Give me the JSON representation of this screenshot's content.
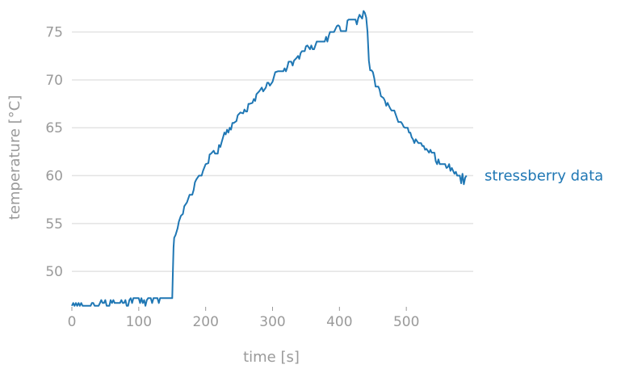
{
  "chart_data": {
    "type": "line",
    "xlabel": "time [s]",
    "ylabel": "temperature [°C]",
    "xlim": [
      0,
      600
    ],
    "ylim": [
      46.3,
      77.5
    ],
    "grid": "horizontal",
    "x_ticks": [
      0,
      100,
      200,
      300,
      400,
      500
    ],
    "y_ticks": [
      50,
      55,
      60,
      65,
      70,
      75
    ],
    "series": [
      {
        "name": "stressberry data",
        "color": "#1f77b4",
        "points": [
          [
            0,
            46.4
          ],
          [
            2,
            46.7
          ],
          [
            4,
            46.4
          ],
          [
            6,
            46.7
          ],
          [
            8,
            46.4
          ],
          [
            10,
            46.7
          ],
          [
            12,
            46.4
          ],
          [
            14,
            46.7
          ],
          [
            16,
            46.4
          ],
          [
            18,
            46.4
          ],
          [
            28,
            46.4
          ],
          [
            30,
            46.7
          ],
          [
            32,
            46.7
          ],
          [
            34,
            46.4
          ],
          [
            40,
            46.4
          ],
          [
            42,
            46.7
          ],
          [
            44,
            47.0
          ],
          [
            46,
            46.7
          ],
          [
            48,
            46.7
          ],
          [
            50,
            47.0
          ],
          [
            52,
            46.4
          ],
          [
            56,
            46.4
          ],
          [
            58,
            47.0
          ],
          [
            60,
            46.7
          ],
          [
            62,
            47.0
          ],
          [
            64,
            46.7
          ],
          [
            70,
            46.7
          ],
          [
            72,
            46.7
          ],
          [
            74,
            47.0
          ],
          [
            76,
            46.7
          ],
          [
            78,
            46.7
          ],
          [
            80,
            47.0
          ],
          [
            82,
            46.4
          ],
          [
            84,
            46.4
          ],
          [
            86,
            47.0
          ],
          [
            88,
            47.2
          ],
          [
            90,
            46.7
          ],
          [
            92,
            47.2
          ],
          [
            100,
            47.2
          ],
          [
            102,
            46.7
          ],
          [
            104,
            47.2
          ],
          [
            106,
            46.7
          ],
          [
            108,
            47.0
          ],
          [
            110,
            46.4
          ],
          [
            112,
            47.0
          ],
          [
            114,
            47.2
          ],
          [
            118,
            47.2
          ],
          [
            120,
            46.7
          ],
          [
            122,
            47.2
          ],
          [
            124,
            47.2
          ],
          [
            128,
            47.2
          ],
          [
            130,
            46.7
          ],
          [
            132,
            47.2
          ],
          [
            145,
            47.2
          ],
          [
            150,
            47.2
          ],
          [
            151,
            50.0
          ],
          [
            152,
            52.5
          ],
          [
            153,
            53.5
          ],
          [
            155,
            53.8
          ],
          [
            158,
            54.5
          ],
          [
            160,
            55.2
          ],
          [
            163,
            55.8
          ],
          [
            166,
            56.0
          ],
          [
            168,
            56.8
          ],
          [
            172,
            57.2
          ],
          [
            176,
            58.0
          ],
          [
            180,
            58.0
          ],
          [
            182,
            58.5
          ],
          [
            184,
            59.3
          ],
          [
            186,
            59.6
          ],
          [
            188,
            59.8
          ],
          [
            190,
            60.0
          ],
          [
            194,
            60.0
          ],
          [
            196,
            60.5
          ],
          [
            200,
            61.2
          ],
          [
            204,
            61.3
          ],
          [
            206,
            62.2
          ],
          [
            208,
            62.3
          ],
          [
            212,
            62.6
          ],
          [
            214,
            62.3
          ],
          [
            218,
            62.3
          ],
          [
            220,
            63.2
          ],
          [
            222,
            63.0
          ],
          [
            224,
            63.5
          ],
          [
            226,
            64.0
          ],
          [
            228,
            64.5
          ],
          [
            230,
            64.3
          ],
          [
            232,
            64.8
          ],
          [
            234,
            64.5
          ],
          [
            236,
            65.0
          ],
          [
            238,
            64.8
          ],
          [
            240,
            65.5
          ],
          [
            242,
            65.5
          ],
          [
            246,
            65.7
          ],
          [
            248,
            66.3
          ],
          [
            252,
            66.6
          ],
          [
            256,
            66.5
          ],
          [
            258,
            66.9
          ],
          [
            260,
            66.7
          ],
          [
            262,
            66.7
          ],
          [
            264,
            67.5
          ],
          [
            266,
            67.5
          ],
          [
            270,
            67.6
          ],
          [
            272,
            68.0
          ],
          [
            274,
            67.8
          ],
          [
            276,
            68.5
          ],
          [
            280,
            68.8
          ],
          [
            282,
            69.0
          ],
          [
            284,
            69.2
          ],
          [
            286,
            68.8
          ],
          [
            290,
            69.2
          ],
          [
            292,
            69.7
          ],
          [
            294,
            69.7
          ],
          [
            296,
            69.4
          ],
          [
            300,
            69.8
          ],
          [
            304,
            70.8
          ],
          [
            308,
            70.9
          ],
          [
            316,
            70.9
          ],
          [
            318,
            71.2
          ],
          [
            320,
            70.9
          ],
          [
            322,
            71.3
          ],
          [
            324,
            71.9
          ],
          [
            328,
            71.9
          ],
          [
            330,
            71.5
          ],
          [
            332,
            72.0
          ],
          [
            336,
            72.3
          ],
          [
            338,
            72.5
          ],
          [
            340,
            72.2
          ],
          [
            342,
            72.8
          ],
          [
            344,
            73.0
          ],
          [
            348,
            73.0
          ],
          [
            350,
            73.5
          ],
          [
            352,
            73.6
          ],
          [
            356,
            73.2
          ],
          [
            358,
            73.6
          ],
          [
            360,
            73.2
          ],
          [
            362,
            73.2
          ],
          [
            366,
            74.0
          ],
          [
            372,
            74.0
          ],
          [
            378,
            74.0
          ],
          [
            380,
            74.5
          ],
          [
            382,
            74.0
          ],
          [
            384,
            74.6
          ],
          [
            386,
            75.0
          ],
          [
            390,
            75.0
          ],
          [
            392,
            75.0
          ],
          [
            396,
            75.6
          ],
          [
            398,
            75.7
          ],
          [
            400,
            75.6
          ],
          [
            402,
            75.1
          ],
          [
            408,
            75.1
          ],
          [
            410,
            75.1
          ],
          [
            412,
            76.2
          ],
          [
            414,
            76.3
          ],
          [
            420,
            76.3
          ],
          [
            424,
            76.3
          ],
          [
            426,
            75.8
          ],
          [
            428,
            76.4
          ],
          [
            430,
            76.8
          ],
          [
            432,
            76.6
          ],
          [
            434,
            76.4
          ],
          [
            436,
            77.2
          ],
          [
            438,
            77.0
          ],
          [
            440,
            76.5
          ],
          [
            442,
            75.0
          ],
          [
            444,
            72.0
          ],
          [
            446,
            71.0
          ],
          [
            448,
            71.0
          ],
          [
            450,
            70.8
          ],
          [
            452,
            70.2
          ],
          [
            454,
            69.3
          ],
          [
            458,
            69.3
          ],
          [
            460,
            69.0
          ],
          [
            462,
            68.3
          ],
          [
            466,
            68.1
          ],
          [
            468,
            67.8
          ],
          [
            470,
            67.3
          ],
          [
            472,
            67.6
          ],
          [
            474,
            67.3
          ],
          [
            476,
            67.0
          ],
          [
            478,
            66.8
          ],
          [
            482,
            66.8
          ],
          [
            484,
            66.4
          ],
          [
            486,
            66.0
          ],
          [
            488,
            65.6
          ],
          [
            492,
            65.6
          ],
          [
            494,
            65.4
          ],
          [
            496,
            65.1
          ],
          [
            498,
            65.0
          ],
          [
            502,
            65.0
          ],
          [
            504,
            64.5
          ],
          [
            506,
            64.5
          ],
          [
            508,
            64.0
          ],
          [
            510,
            63.8
          ],
          [
            512,
            63.4
          ],
          [
            514,
            63.8
          ],
          [
            516,
            63.6
          ],
          [
            518,
            63.4
          ],
          [
            522,
            63.4
          ],
          [
            524,
            63.1
          ],
          [
            526,
            63.1
          ],
          [
            528,
            62.7
          ],
          [
            530,
            62.8
          ],
          [
            532,
            62.6
          ],
          [
            534,
            62.4
          ],
          [
            536,
            62.7
          ],
          [
            538,
            62.4
          ],
          [
            542,
            62.4
          ],
          [
            544,
            61.5
          ],
          [
            546,
            61.2
          ],
          [
            548,
            61.7
          ],
          [
            550,
            61.2
          ],
          [
            558,
            61.2
          ],
          [
            560,
            60.8
          ],
          [
            562,
            60.9
          ],
          [
            564,
            61.2
          ],
          [
            566,
            60.5
          ],
          [
            568,
            60.8
          ],
          [
            570,
            60.5
          ],
          [
            572,
            60.2
          ],
          [
            574,
            60.4
          ],
          [
            576,
            60.0
          ],
          [
            580,
            60.0
          ],
          [
            582,
            59.2
          ],
          [
            584,
            60.2
          ],
          [
            586,
            59.1
          ],
          [
            588,
            59.8
          ],
          [
            590,
            60.0
          ]
        ]
      }
    ]
  }
}
